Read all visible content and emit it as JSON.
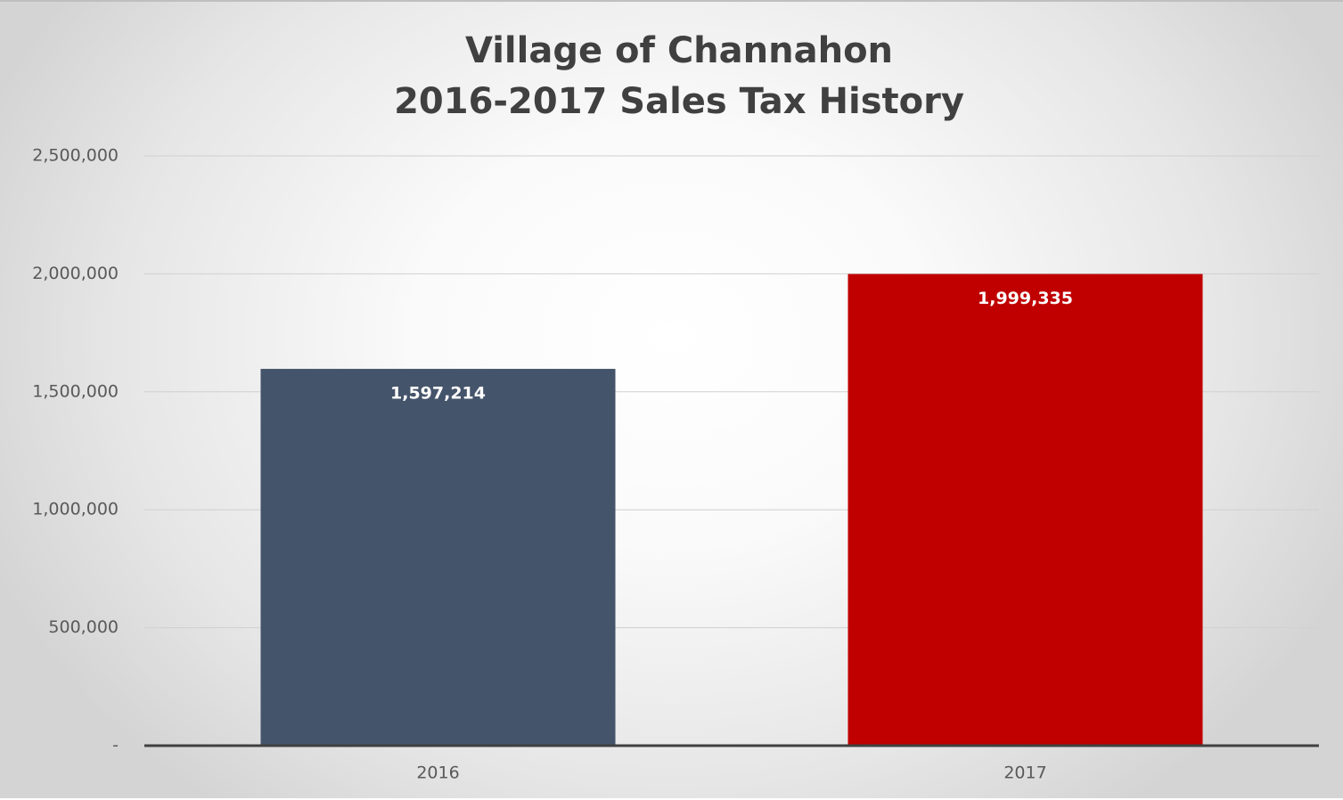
{
  "chart_data": {
    "type": "bar",
    "title": [
      "Village of Channahon",
      "2016-2017 Sales Tax History"
    ],
    "categories": [
      "2016",
      "2017"
    ],
    "values": [
      1597214,
      1999335
    ],
    "value_labels": [
      "1,597,214",
      "1,999,335"
    ],
    "colors": [
      "#44546a",
      "#c00000"
    ],
    "ylim": [
      0,
      2500000
    ],
    "yticks": [
      {
        "value": 0,
        "label": "-"
      },
      {
        "value": 500000,
        "label": "500,000"
      },
      {
        "value": 1000000,
        "label": "1,000,000"
      },
      {
        "value": 1500000,
        "label": "1,500,000"
      },
      {
        "value": 2000000,
        "label": "2,000,000"
      },
      {
        "value": 2500000,
        "label": "2,500,000"
      }
    ],
    "grid": true
  }
}
